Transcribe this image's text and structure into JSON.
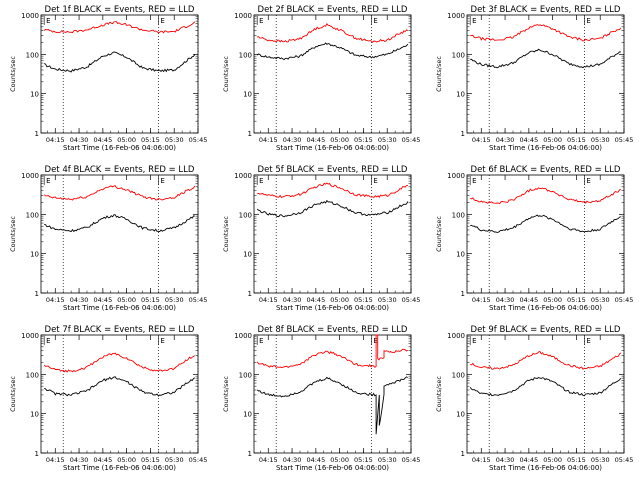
{
  "figure": {
    "start_time_label": "Start Time (16-Feb-06 04:06:00)",
    "ylabel": "Counts/sec",
    "colors": {
      "events": "#000000",
      "lld": "#ff0000",
      "axes": "#000000",
      "background": "#ffffff"
    }
  },
  "chart_data": [
    {
      "type": "line",
      "title": "Det 1f BLACK = Events, RED = LLD",
      "xlabel": "Start Time (16-Feb-06 04:06:00)",
      "ylabel": "Counts/sec",
      "y_scale": "log",
      "ylim": [
        1,
        1000
      ],
      "x_ticks": [
        "04:15",
        "04:30",
        "04:45",
        "05:00",
        "05:15",
        "05:30",
        "05:45"
      ],
      "y_ticks": [
        "1",
        "10",
        "100",
        "1000"
      ],
      "vlines": [
        "04:20",
        "05:20",
        "05:45"
      ],
      "markers": [
        {
          "label": "E",
          "at": "04:08"
        },
        {
          "label": "E",
          "at": "05:20"
        }
      ],
      "series": [
        {
          "name": "Events",
          "color": "#000000",
          "x": [
            "04:08",
            "04:15",
            "04:25",
            "04:35",
            "04:45",
            "04:52",
            "05:00",
            "05:10",
            "05:20",
            "05:30",
            "05:38",
            "05:43"
          ],
          "y": [
            55,
            42,
            38,
            48,
            90,
            110,
            85,
            45,
            38,
            40,
            70,
            100
          ]
        },
        {
          "name": "LLD",
          "color": "#ff0000",
          "x": [
            "04:08",
            "04:15",
            "04:25",
            "04:35",
            "04:45",
            "04:52",
            "05:00",
            "05:10",
            "05:20",
            "05:30",
            "05:38",
            "05:43"
          ],
          "y": [
            420,
            380,
            370,
            420,
            560,
            650,
            560,
            420,
            370,
            380,
            520,
            650
          ]
        }
      ]
    },
    {
      "type": "line",
      "title": "Det 2f BLACK = Events, RED = LLD",
      "xlabel": "Start Time (16-Feb-06 04:06:00)",
      "ylabel": "Counts/sec",
      "y_scale": "log",
      "ylim": [
        1,
        1000
      ],
      "x_ticks": [
        "04:15",
        "04:30",
        "04:45",
        "05:00",
        "05:15",
        "05:30",
        "05:45"
      ],
      "y_ticks": [
        "1",
        "10",
        "100",
        "1000"
      ],
      "vlines": [
        "04:20",
        "05:20",
        "05:45"
      ],
      "markers": [
        {
          "label": "E",
          "at": "04:08"
        },
        {
          "label": "E",
          "at": "05:20"
        }
      ],
      "series": [
        {
          "name": "Events",
          "color": "#000000",
          "x": [
            "04:08",
            "04:15",
            "04:25",
            "04:35",
            "04:45",
            "04:52",
            "05:00",
            "05:10",
            "05:20",
            "05:30",
            "05:38",
            "05:43"
          ],
          "y": [
            100,
            85,
            78,
            90,
            160,
            190,
            150,
            95,
            85,
            100,
            140,
            175
          ]
        },
        {
          "name": "LLD",
          "color": "#ff0000",
          "x": [
            "04:08",
            "04:15",
            "04:25",
            "04:35",
            "04:45",
            "04:52",
            "05:00",
            "05:10",
            "05:20",
            "05:30",
            "05:38",
            "05:43"
          ],
          "y": [
            280,
            230,
            210,
            250,
            450,
            560,
            420,
            260,
            210,
            230,
            340,
            420
          ]
        }
      ]
    },
    {
      "type": "line",
      "title": "Det 3f BLACK = Events, RED = LLD",
      "xlabel": "Start Time (16-Feb-06 04:06:00)",
      "ylabel": "Counts/sec",
      "y_scale": "log",
      "ylim": [
        1,
        1000
      ],
      "x_ticks": [
        "04:15",
        "04:30",
        "04:45",
        "05:00",
        "05:15",
        "05:30",
        "05:45"
      ],
      "y_ticks": [
        "1",
        "10",
        "100",
        "1000"
      ],
      "vlines": [
        "04:20",
        "05:20",
        "05:45"
      ],
      "markers": [
        {
          "label": "E",
          "at": "04:08"
        },
        {
          "label": "E",
          "at": "05:20"
        }
      ],
      "series": [
        {
          "name": "Events",
          "color": "#000000",
          "x": [
            "04:08",
            "04:15",
            "04:25",
            "04:35",
            "04:45",
            "04:52",
            "05:00",
            "05:10",
            "05:20",
            "05:30",
            "05:38",
            "05:43"
          ],
          "y": [
            75,
            55,
            48,
            60,
            110,
            130,
            100,
            58,
            48,
            55,
            90,
            120
          ]
        },
        {
          "name": "LLD",
          "color": "#ff0000",
          "x": [
            "04:08",
            "04:15",
            "04:25",
            "04:35",
            "04:45",
            "04:52",
            "05:00",
            "05:10",
            "05:20",
            "05:30",
            "05:38",
            "05:43"
          ],
          "y": [
            300,
            250,
            230,
            270,
            480,
            580,
            450,
            280,
            230,
            250,
            380,
            470
          ]
        }
      ]
    },
    {
      "type": "line",
      "title": "Det 4f BLACK = Events, RED = LLD",
      "xlabel": "Start Time (16-Feb-06 04:06:00)",
      "ylabel": "Counts/sec",
      "y_scale": "log",
      "ylim": [
        1,
        1000
      ],
      "x_ticks": [
        "04:15",
        "04:30",
        "04:45",
        "05:00",
        "05:15",
        "05:30",
        "05:45"
      ],
      "y_ticks": [
        "1",
        "10",
        "100",
        "1000"
      ],
      "vlines": [
        "04:20",
        "05:20",
        "05:45"
      ],
      "markers": [
        {
          "label": "E",
          "at": "04:08"
        },
        {
          "label": "E",
          "at": "05:20"
        }
      ],
      "series": [
        {
          "name": "Events",
          "color": "#000000",
          "x": [
            "04:08",
            "04:15",
            "04:25",
            "04:35",
            "04:45",
            "04:52",
            "05:00",
            "05:10",
            "05:20",
            "05:30",
            "05:38",
            "05:43"
          ],
          "y": [
            55,
            42,
            38,
            46,
            80,
            95,
            75,
            45,
            38,
            45,
            70,
            90
          ]
        },
        {
          "name": "LLD",
          "color": "#ff0000",
          "x": [
            "04:08",
            "04:15",
            "04:25",
            "04:35",
            "04:45",
            "04:52",
            "05:00",
            "05:10",
            "05:20",
            "05:30",
            "05:38",
            "05:43"
          ],
          "y": [
            300,
            260,
            240,
            280,
            450,
            520,
            420,
            280,
            240,
            270,
            400,
            500
          ]
        }
      ]
    },
    {
      "type": "line",
      "title": "Det 5f BLACK = Events, RED = LLD",
      "xlabel": "Start Time (16-Feb-06 04:06:00)",
      "ylabel": "Counts/sec",
      "y_scale": "log",
      "ylim": [
        1,
        1000
      ],
      "x_ticks": [
        "04:15",
        "04:30",
        "04:45",
        "05:00",
        "05:15",
        "05:30",
        "05:45"
      ],
      "y_ticks": [
        "1",
        "10",
        "100",
        "1000"
      ],
      "vlines": [
        "04:20",
        "05:20",
        "05:45"
      ],
      "markers": [
        {
          "label": "E",
          "at": "04:08"
        },
        {
          "label": "E",
          "at": "05:20"
        }
      ],
      "series": [
        {
          "name": "Events",
          "color": "#000000",
          "x": [
            "04:08",
            "04:15",
            "04:25",
            "04:35",
            "04:45",
            "04:52",
            "05:00",
            "05:10",
            "05:20",
            "05:30",
            "05:38",
            "05:43"
          ],
          "y": [
            130,
            100,
            90,
            110,
            180,
            210,
            170,
            110,
            95,
            110,
            160,
            200
          ]
        },
        {
          "name": "LLD",
          "color": "#ff0000",
          "x": [
            "04:08",
            "04:15",
            "04:25",
            "04:35",
            "04:45",
            "04:52",
            "05:00",
            "05:10",
            "05:20",
            "05:30",
            "05:38",
            "05:43"
          ],
          "y": [
            350,
            300,
            280,
            320,
            500,
            600,
            480,
            320,
            280,
            300,
            430,
            560
          ]
        }
      ]
    },
    {
      "type": "line",
      "title": "Det 6f BLACK = Events, RED = LLD",
      "xlabel": "Start Time (16-Feb-06 04:06:00)",
      "ylabel": "Counts/sec",
      "y_scale": "log",
      "ylim": [
        1,
        1000
      ],
      "x_ticks": [
        "04:15",
        "04:30",
        "04:45",
        "05:00",
        "05:15",
        "05:30",
        "05:45"
      ],
      "y_ticks": [
        "1",
        "10",
        "100",
        "1000"
      ],
      "vlines": [
        "04:20",
        "05:20",
        "05:45"
      ],
      "markers": [
        {
          "label": "E",
          "at": "04:08"
        },
        {
          "label": "E",
          "at": "05:20"
        }
      ],
      "series": [
        {
          "name": "Events",
          "color": "#000000",
          "x": [
            "04:08",
            "04:15",
            "04:25",
            "04:35",
            "04:45",
            "04:52",
            "05:00",
            "05:10",
            "05:20",
            "05:30",
            "05:38",
            "05:43"
          ],
          "y": [
            55,
            40,
            36,
            45,
            80,
            95,
            75,
            44,
            36,
            42,
            68,
            90
          ]
        },
        {
          "name": "LLD",
          "color": "#ff0000",
          "x": [
            "04:08",
            "04:15",
            "04:25",
            "04:35",
            "04:45",
            "04:52",
            "05:00",
            "05:10",
            "05:20",
            "05:30",
            "05:38",
            "05:43"
          ],
          "y": [
            260,
            210,
            190,
            230,
            400,
            480,
            380,
            240,
            200,
            220,
            330,
            420
          ]
        }
      ]
    },
    {
      "type": "line",
      "title": "Det 7f BLACK = Events, RED = LLD",
      "xlabel": "Start Time (16-Feb-06 04:06:00)",
      "ylabel": "Counts/sec",
      "y_scale": "log",
      "ylim": [
        1,
        1000
      ],
      "x_ticks": [
        "04:15",
        "04:30",
        "04:45",
        "05:00",
        "05:15",
        "05:30",
        "05:45"
      ],
      "y_ticks": [
        "1",
        "10",
        "100",
        "1000"
      ],
      "vlines": [
        "04:20",
        "05:20",
        "05:45"
      ],
      "markers": [
        {
          "label": "E",
          "at": "04:08"
        },
        {
          "label": "E",
          "at": "05:20"
        }
      ],
      "series": [
        {
          "name": "Events",
          "color": "#000000",
          "x": [
            "04:08",
            "04:15",
            "04:25",
            "04:35",
            "04:45",
            "04:52",
            "05:00",
            "05:10",
            "05:20",
            "05:30",
            "05:38",
            "05:43"
          ],
          "y": [
            45,
            32,
            30,
            38,
            70,
            85,
            65,
            36,
            30,
            35,
            60,
            80
          ]
        },
        {
          "name": "LLD",
          "color": "#ff0000",
          "x": [
            "04:08",
            "04:15",
            "04:25",
            "04:35",
            "04:45",
            "04:52",
            "05:00",
            "05:10",
            "05:20",
            "05:30",
            "05:38",
            "05:43"
          ],
          "y": [
            170,
            130,
            120,
            150,
            280,
            340,
            260,
            150,
            120,
            140,
            230,
            320
          ]
        }
      ]
    },
    {
      "type": "line",
      "title": "Det 8f BLACK = Events, RED = LLD",
      "xlabel": "Start Time (16-Feb-06 04:06:00)",
      "ylabel": "Counts/sec",
      "y_scale": "log",
      "ylim": [
        1,
        1000
      ],
      "x_ticks": [
        "04:15",
        "04:30",
        "04:45",
        "05:00",
        "05:15",
        "05:30",
        "05:45"
      ],
      "y_ticks": [
        "1",
        "10",
        "100",
        "1000"
      ],
      "vlines": [
        "04:20",
        "05:20",
        "05:45"
      ],
      "markers": [
        {
          "label": "E",
          "at": "04:08"
        },
        {
          "label": "E",
          "at": "05:20"
        }
      ],
      "series": [
        {
          "name": "Events",
          "color": "#000000",
          "x": [
            "04:08",
            "04:15",
            "04:25",
            "04:35",
            "04:45",
            "04:52",
            "05:00",
            "05:10",
            "05:15",
            "05:23",
            "05:23",
            "05:25",
            "05:25",
            "05:28",
            "05:28",
            "05:30",
            "05:38",
            "05:43"
          ],
          "y": [
            40,
            30,
            28,
            36,
            65,
            80,
            60,
            35,
            32,
            30,
            3,
            30,
            5,
            30,
            50,
            55,
            70,
            85
          ]
        },
        {
          "name": "LLD",
          "color": "#ff0000",
          "x": [
            "04:08",
            "04:15",
            "04:25",
            "04:35",
            "04:45",
            "04:52",
            "05:00",
            "05:10",
            "05:15",
            "05:23",
            "05:23",
            "05:24",
            "05:24",
            "05:28",
            "05:28",
            "05:33",
            "05:38",
            "05:43"
          ],
          "y": [
            200,
            160,
            150,
            180,
            320,
            380,
            300,
            180,
            170,
            160,
            1000,
            1000,
            250,
            250,
            400,
            360,
            400,
            420
          ]
        }
      ]
    },
    {
      "type": "line",
      "title": "Det 9f BLACK = Events, RED = LLD",
      "xlabel": "Start Time (16-Feb-06 04:06:00)",
      "ylabel": "Counts/sec",
      "y_scale": "log",
      "ylim": [
        1,
        1000
      ],
      "x_ticks": [
        "04:15",
        "04:30",
        "04:45",
        "05:00",
        "05:15",
        "05:30",
        "05:45"
      ],
      "y_ticks": [
        "1",
        "10",
        "100",
        "1000"
      ],
      "vlines": [
        "04:20",
        "05:20",
        "05:45"
      ],
      "markers": [
        {
          "label": "E",
          "at": "04:08"
        },
        {
          "label": "E",
          "at": "05:20"
        }
      ],
      "series": [
        {
          "name": "Events",
          "color": "#000000",
          "x": [
            "04:08",
            "04:15",
            "04:25",
            "04:35",
            "04:45",
            "04:52",
            "05:00",
            "05:10",
            "05:20",
            "05:30",
            "05:38",
            "05:43"
          ],
          "y": [
            45,
            32,
            30,
            38,
            70,
            85,
            65,
            36,
            30,
            34,
            58,
            80
          ]
        },
        {
          "name": "LLD",
          "color": "#ff0000",
          "x": [
            "04:08",
            "04:15",
            "04:25",
            "04:35",
            "04:45",
            "04:52",
            "05:00",
            "05:10",
            "05:20",
            "05:30",
            "05:38",
            "05:43"
          ],
          "y": [
            190,
            150,
            140,
            170,
            300,
            360,
            280,
            170,
            140,
            160,
            250,
            340
          ]
        }
      ]
    }
  ]
}
